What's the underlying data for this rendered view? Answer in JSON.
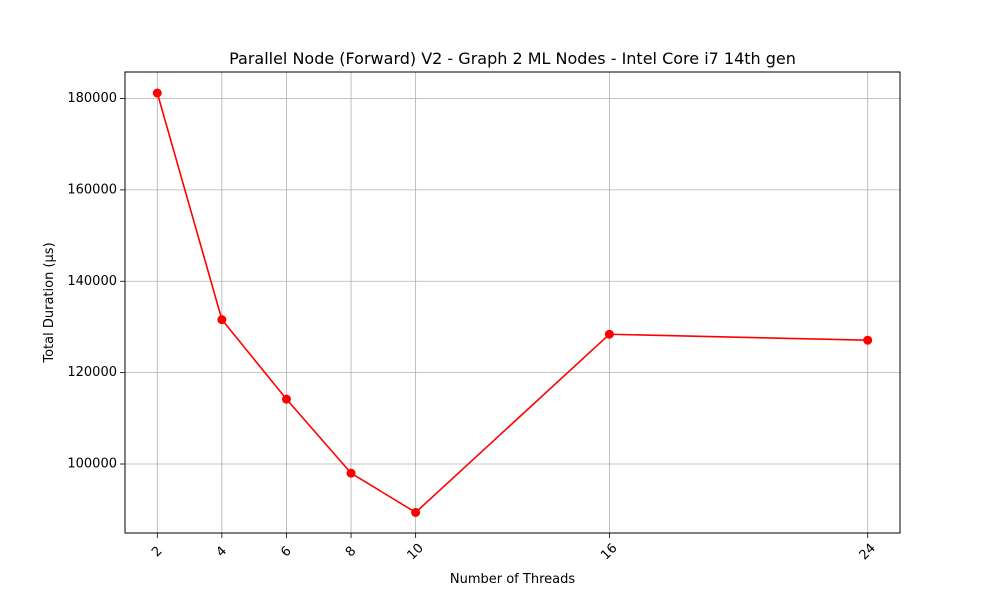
{
  "chart_data": {
    "type": "line",
    "title": "Parallel Node (Forward) V2 - Graph 2 ML Nodes - Intel Core i7 14th gen",
    "xlabel": "Number of Threads",
    "ylabel": "Total Duration (µs)",
    "x": [
      2,
      4,
      6,
      8,
      10,
      16,
      24
    ],
    "xticks": [
      "2",
      "4",
      "6",
      "8",
      "10",
      "16",
      "24"
    ],
    "xtick_rotation": 45,
    "xlim": [
      1.0,
      25.0
    ],
    "yticks": [
      100000,
      120000,
      140000,
      160000,
      180000
    ],
    "ytick_labels": [
      "100000",
      "120000",
      "140000",
      "160000",
      "180000"
    ],
    "ylim": [
      84900,
      185800
    ],
    "grid": true,
    "series": [
      {
        "color": "#ff0000",
        "marker": "circle",
        "values": [
          181200,
          131600,
          114200,
          98000,
          89400,
          128400,
          127100
        ]
      }
    ]
  }
}
